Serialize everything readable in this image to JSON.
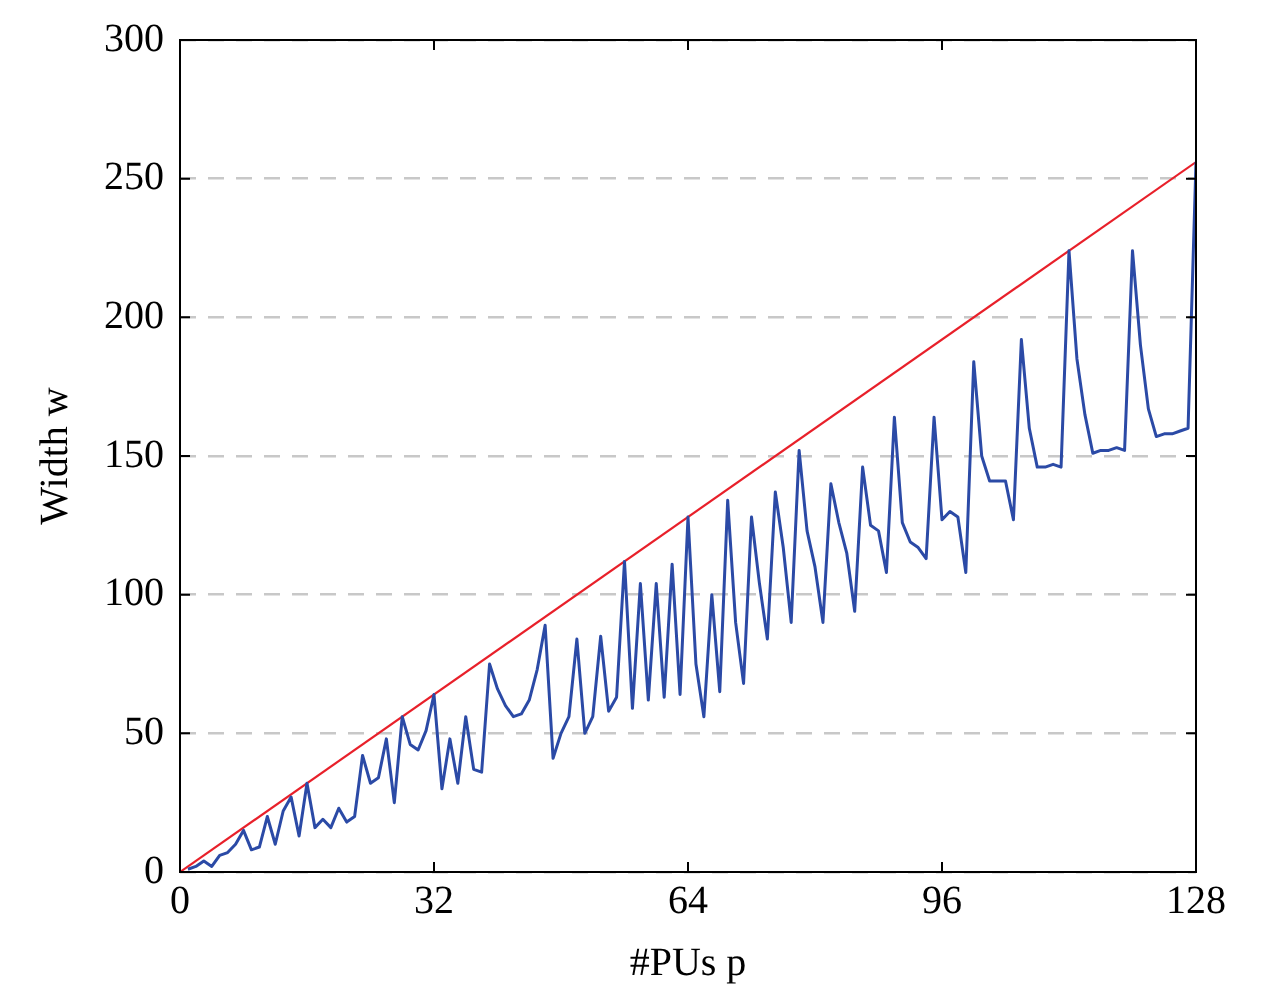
{
  "chart_data": {
    "type": "line",
    "xlabel": "#PUs p",
    "ylabel": "Width w",
    "xlim": [
      0,
      128
    ],
    "ylim": [
      0,
      300
    ],
    "xticks": [
      0,
      32,
      64,
      96,
      128
    ],
    "yticks": [
      0,
      50,
      100,
      150,
      200,
      250,
      300
    ],
    "grid": "y",
    "marker": "none",
    "legend": false,
    "series": [
      {
        "color": "#2b4aa6",
        "x": [
          1,
          2,
          3,
          4,
          5,
          6,
          7,
          8,
          9,
          10,
          11,
          12,
          13,
          14,
          15,
          16,
          17,
          18,
          19,
          20,
          21,
          22,
          23,
          24,
          25,
          26,
          27,
          28,
          29,
          30,
          31,
          32,
          33,
          34,
          35,
          36,
          37,
          38,
          39,
          40,
          41,
          42,
          43,
          44,
          45,
          46,
          47,
          48,
          49,
          50,
          51,
          52,
          53,
          54,
          55,
          56,
          57,
          58,
          59,
          60,
          61,
          62,
          63,
          64,
          65,
          66,
          67,
          68,
          69,
          70,
          71,
          72,
          73,
          74,
          75,
          76,
          77,
          78,
          79,
          80,
          81,
          82,
          83,
          84,
          85,
          86,
          87,
          88,
          89,
          90,
          91,
          92,
          93,
          94,
          95,
          96,
          97,
          98,
          99,
          100,
          101,
          102,
          103,
          104,
          105,
          106,
          107,
          108,
          109,
          110,
          111,
          112,
          113,
          114,
          115,
          116,
          117,
          118,
          119,
          120,
          121,
          122,
          123,
          124,
          125,
          126,
          127,
          128
        ],
        "values": [
          1,
          2,
          4,
          2,
          6,
          7,
          10,
          15,
          8,
          9,
          20,
          10,
          22,
          27,
          13,
          32,
          16,
          19,
          16,
          23,
          18,
          20,
          42,
          32,
          34,
          48,
          25,
          56,
          46,
          44,
          51,
          64,
          30,
          48,
          32,
          56,
          37,
          36,
          75,
          66,
          60,
          56,
          57,
          62,
          73,
          89,
          41,
          50,
          56,
          84,
          50,
          56,
          85,
          58,
          63,
          112,
          59,
          104,
          62,
          104,
          63,
          111,
          64,
          128,
          75,
          56,
          100,
          65,
          134,
          90,
          68,
          128,
          104,
          84,
          137,
          117,
          90,
          152,
          123,
          110,
          90,
          140,
          126,
          115,
          94,
          146,
          125,
          123,
          108,
          164,
          126,
          119,
          117,
          113,
          164,
          127,
          130,
          128,
          108,
          184,
          150,
          141,
          141,
          141,
          127,
          192,
          160,
          146,
          146,
          147,
          146,
          224,
          185,
          165,
          151,
          152,
          152,
          153,
          152,
          224,
          190,
          167,
          157,
          158,
          158,
          159,
          160,
          256
        ]
      },
      {
        "color": "#e8202a",
        "x": [
          0,
          128
        ],
        "values": [
          0,
          256
        ]
      }
    ]
  }
}
